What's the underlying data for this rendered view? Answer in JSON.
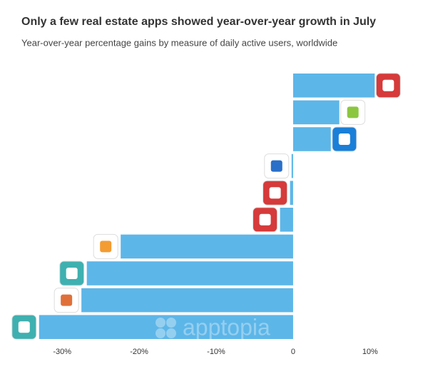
{
  "chart_data": {
    "type": "barh",
    "title": "Only a few real estate apps showed year-over-year growth in July",
    "subtitle": "Year-over-year percentage gains by measure of daily active users, worldwide",
    "watermark": "apptopia",
    "categories": [
      null,
      null,
      null,
      null,
      null,
      null,
      null,
      null,
      null,
      null
    ],
    "values": [
      10.6,
      6.0,
      4.9,
      -0.2,
      -0.4,
      -1.7,
      -22.4,
      -26.8,
      -27.5,
      -33.0
    ],
    "color": "#5db6e8",
    "xlim": [
      -34,
      14
    ],
    "xticks": [
      {
        "value": -30,
        "label": "-30%"
      },
      {
        "value": -20,
        "label": "-20%"
      },
      {
        "value": -10,
        "label": "-10%"
      },
      0,
      {
        "value": 10,
        "label": "10%"
      }
    ]
  }
}
